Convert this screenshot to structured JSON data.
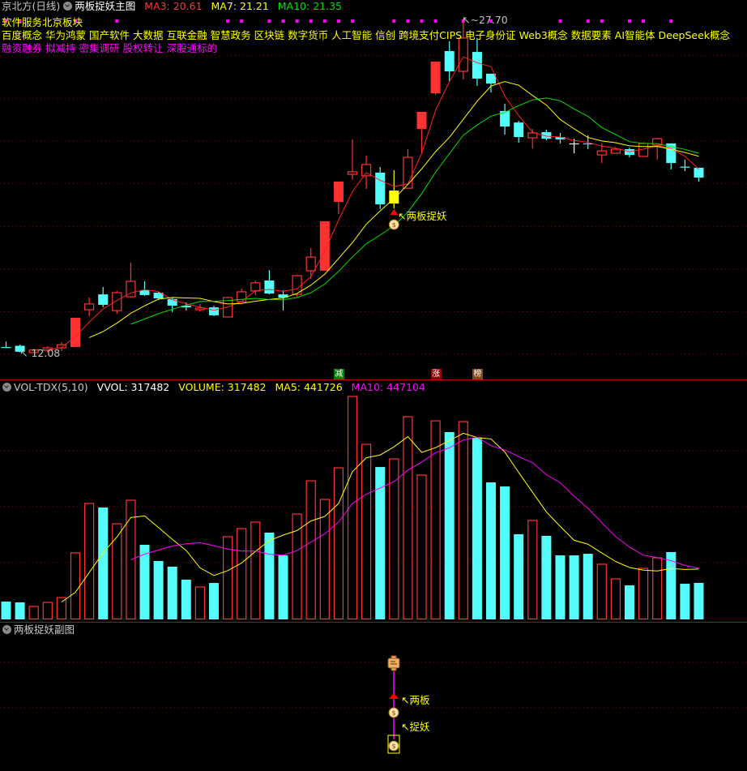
{
  "header": {
    "stock_name": "京北方(日线)",
    "indicator_name": "两板捉妖主图",
    "ma3_label": "MA3: 20.61",
    "ma7_label": "MA7: 21.21",
    "ma10_label": "MA10: 21.35",
    "sector": "软件服务北京板块",
    "concepts": [
      "百度概念",
      "华为鸿蒙",
      "国产软件",
      "大数据",
      "互联金融",
      "智慧政务",
      "区块链",
      "数字货币",
      "人工智能",
      "信创",
      "跨境支付CIPS",
      "电子身份证",
      "Web3概念",
      "数据要素",
      "AI智能体",
      "DeepSeek概念"
    ],
    "tags": [
      "融资融券",
      "拟减持",
      "密集调研",
      "股权转让",
      "深股通标的"
    ]
  },
  "main_chart": {
    "high_label": "27.70",
    "low_label": "12.08",
    "signal_label": "↖两板捉妖",
    "event_tags": [
      {
        "text": "减",
        "color": "#008000",
        "index": 24
      },
      {
        "text": "涨",
        "color": "#8b0000",
        "index": 31
      },
      {
        "text": "榜",
        "color": "#8b4513",
        "index": 34
      }
    ]
  },
  "volume_panel": {
    "indicator_name": "VOL-TDX(5,10)",
    "vvol_label": "VVOL: 317482",
    "volume_label": "VOLUME: 317482",
    "ma5_label": "MA5: 441726",
    "ma10_label": "MA10: 447104"
  },
  "sub_panel": {
    "title": "两板捉妖副图",
    "label_two_board": "↖两板",
    "label_catch": "↖捉妖"
  },
  "colors": {
    "up": "#ff3232",
    "down": "#54fcfc",
    "signal": "#ffff00",
    "ma3": "#ff2020",
    "ma7": "#ffff00",
    "ma10": "#00e000",
    "vol_ma5": "#ffff00",
    "vol_ma10": "#ff00ff",
    "grid": "#8b0000",
    "marker_dot": "#ff00ff"
  },
  "chart_data": {
    "type": "candlestick",
    "title": "京北方(日线)",
    "ma_periods": [
      3,
      7,
      10
    ],
    "volume_ma_periods": [
      5,
      10
    ],
    "price_range": [
      12.08,
      27.7
    ],
    "grid": true,
    "signal_index": 28,
    "top_marker_indices": [
      0,
      1,
      5,
      8,
      16,
      17,
      19,
      20,
      21,
      22,
      23,
      24,
      25,
      28,
      29,
      30,
      31,
      33,
      35,
      40,
      42,
      43,
      45,
      46,
      48
    ],
    "candles": [
      {
        "o": 12.34,
        "h": 12.6,
        "l": 12.34,
        "c": 12.34,
        "v": 155000,
        "s": "doji"
      },
      {
        "o": 12.4,
        "h": 12.45,
        "l": 12.1,
        "c": 12.12,
        "v": 148000,
        "s": "down"
      },
      {
        "o": 12.08,
        "h": 12.25,
        "l": 12.08,
        "c": 12.2,
        "v": 113000,
        "s": "up"
      },
      {
        "o": 12.19,
        "h": 12.38,
        "l": 12.1,
        "c": 12.3,
        "v": 148000,
        "s": "up"
      },
      {
        "o": 12.3,
        "h": 12.57,
        "l": 12.15,
        "c": 12.45,
        "v": 190000,
        "s": "up"
      },
      {
        "o": 12.34,
        "h": 13.71,
        "l": 12.34,
        "c": 13.71,
        "v": 579000,
        "s": "up-solid"
      },
      {
        "o": 14.09,
        "h": 14.66,
        "l": 13.79,
        "c": 14.36,
        "v": 1009000,
        "s": "up"
      },
      {
        "o": 14.81,
        "h": 15.16,
        "l": 14.21,
        "c": 14.32,
        "v": 974000,
        "s": "down"
      },
      {
        "o": 14.05,
        "h": 14.97,
        "l": 13.9,
        "c": 14.89,
        "v": 832000,
        "s": "up"
      },
      {
        "o": 14.7,
        "h": 16.3,
        "l": 14.66,
        "c": 15.42,
        "v": 1037000,
        "s": "up"
      },
      {
        "o": 15.0,
        "h": 15.42,
        "l": 14.74,
        "c": 14.78,
        "v": 649000,
        "s": "down"
      },
      {
        "o": 14.89,
        "h": 14.93,
        "l": 14.55,
        "c": 14.62,
        "v": 508000,
        "s": "down"
      },
      {
        "o": 14.59,
        "h": 14.66,
        "l": 13.98,
        "c": 14.28,
        "v": 459000,
        "s": "down"
      },
      {
        "o": 14.28,
        "h": 14.43,
        "l": 14.05,
        "c": 14.2,
        "v": 346000,
        "s": "down"
      },
      {
        "o": 14.09,
        "h": 14.36,
        "l": 14.01,
        "c": 14.17,
        "v": 282000,
        "s": "up"
      },
      {
        "o": 14.2,
        "h": 14.28,
        "l": 13.79,
        "c": 13.83,
        "v": 317000,
        "s": "down"
      },
      {
        "o": 13.75,
        "h": 14.7,
        "l": 13.75,
        "c": 14.66,
        "v": 720000,
        "s": "up"
      },
      {
        "o": 14.47,
        "h": 15.08,
        "l": 14.43,
        "c": 14.93,
        "v": 790000,
        "s": "up"
      },
      {
        "o": 14.97,
        "h": 15.46,
        "l": 14.78,
        "c": 15.35,
        "v": 847000,
        "s": "up"
      },
      {
        "o": 15.46,
        "h": 15.95,
        "l": 14.81,
        "c": 14.85,
        "v": 755000,
        "s": "down"
      },
      {
        "o": 14.81,
        "h": 15.0,
        "l": 14.05,
        "c": 14.66,
        "v": 557000,
        "s": "down"
      },
      {
        "o": 14.81,
        "h": 15.73,
        "l": 14.7,
        "c": 15.69,
        "v": 917000,
        "s": "up"
      },
      {
        "o": 15.92,
        "h": 16.98,
        "l": 15.54,
        "c": 16.56,
        "v": 1206000,
        "s": "up"
      },
      {
        "o": 15.92,
        "h": 18.24,
        "l": 15.92,
        "c": 18.24,
        "v": 1044000,
        "s": "up-solid"
      },
      {
        "o": 19.15,
        "h": 20.1,
        "l": 18.58,
        "c": 20.1,
        "v": 1319000,
        "s": "up-solid"
      },
      {
        "o": 20.44,
        "h": 22.08,
        "l": 20.18,
        "c": 20.56,
        "v": 1940000,
        "s": "up"
      },
      {
        "o": 20.37,
        "h": 21.32,
        "l": 19.76,
        "c": 20.9,
        "v": 1524000,
        "s": "up"
      },
      {
        "o": 20.52,
        "h": 20.78,
        "l": 18.81,
        "c": 19.03,
        "v": 1326000,
        "s": "down"
      },
      {
        "o": 19.07,
        "h": 20.63,
        "l": 18.84,
        "c": 19.68,
        "v": 1397000,
        "s": "signal"
      },
      {
        "o": 19.79,
        "h": 21.62,
        "l": 19.79,
        "c": 21.24,
        "v": 1764000,
        "s": "up"
      },
      {
        "o": 22.57,
        "h": 23.37,
        "l": 21.39,
        "c": 23.37,
        "v": 1256000,
        "s": "up-solid"
      },
      {
        "o": 24.24,
        "h": 25.73,
        "l": 24.17,
        "c": 25.73,
        "v": 1728000,
        "s": "up-solid"
      },
      {
        "o": 26.22,
        "h": 26.68,
        "l": 24.81,
        "c": 25.27,
        "v": 1630000,
        "s": "down"
      },
      {
        "o": 25.27,
        "h": 27.7,
        "l": 24.89,
        "c": 26.83,
        "v": 1721000,
        "s": "up"
      },
      {
        "o": 26.18,
        "h": 26.83,
        "l": 24.59,
        "c": 24.93,
        "v": 1580000,
        "s": "down"
      },
      {
        "o": 25.16,
        "h": 25.16,
        "l": 24.28,
        "c": 24.7,
        "v": 1192000,
        "s": "down"
      },
      {
        "o": 23.41,
        "h": 23.75,
        "l": 22.3,
        "c": 22.68,
        "v": 1157000,
        "s": "down"
      },
      {
        "o": 22.87,
        "h": 22.95,
        "l": 21.92,
        "c": 22.19,
        "v": 741000,
        "s": "down"
      },
      {
        "o": 22.15,
        "h": 22.57,
        "l": 21.66,
        "c": 22.38,
        "v": 861000,
        "s": "up"
      },
      {
        "o": 22.42,
        "h": 22.53,
        "l": 22.04,
        "c": 22.11,
        "v": 727000,
        "s": "down"
      },
      {
        "o": 22.19,
        "h": 22.38,
        "l": 21.89,
        "c": 22.08,
        "v": 557000,
        "s": "down"
      },
      {
        "o": 21.89,
        "h": 22.11,
        "l": 21.43,
        "c": 21.89,
        "v": 557000,
        "s": "doji"
      },
      {
        "o": 21.89,
        "h": 22.27,
        "l": 21.62,
        "c": 21.85,
        "v": 571000,
        "s": "down"
      },
      {
        "o": 21.35,
        "h": 21.89,
        "l": 20.97,
        "c": 21.54,
        "v": 480000,
        "s": "up"
      },
      {
        "o": 21.43,
        "h": 21.66,
        "l": 21.43,
        "c": 21.62,
        "v": 353000,
        "s": "up"
      },
      {
        "o": 21.62,
        "h": 21.7,
        "l": 21.24,
        "c": 21.35,
        "v": 296000,
        "s": "down"
      },
      {
        "o": 21.28,
        "h": 21.95,
        "l": 21.28,
        "c": 21.89,
        "v": 444000,
        "s": "up"
      },
      {
        "o": 21.81,
        "h": 22.15,
        "l": 21.13,
        "c": 22.11,
        "v": 536000,
        "s": "up"
      },
      {
        "o": 21.89,
        "h": 21.89,
        "l": 20.67,
        "c": 20.97,
        "v": 586000,
        "s": "down"
      },
      {
        "o": 20.8,
        "h": 21.13,
        "l": 20.59,
        "c": 20.78,
        "v": 310000,
        "s": "down"
      },
      {
        "o": 20.75,
        "h": 20.75,
        "l": 20.1,
        "c": 20.29,
        "v": 317482,
        "s": "down"
      }
    ]
  }
}
